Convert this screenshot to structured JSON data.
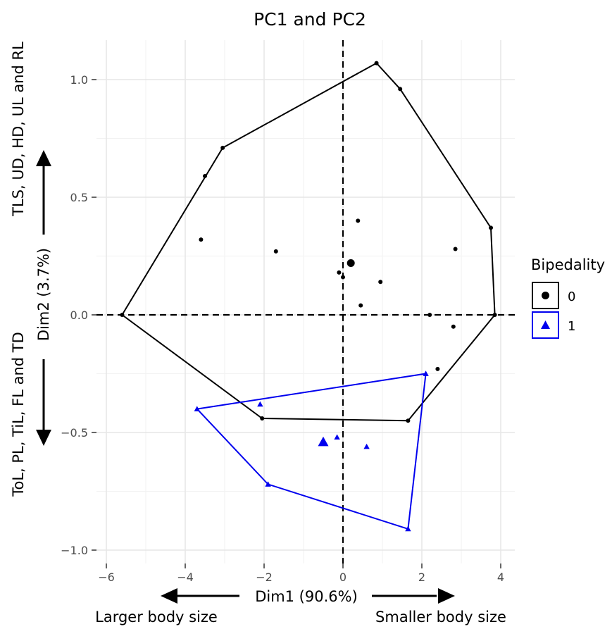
{
  "chart_data": {
    "type": "scatter",
    "title": "PC1 and PC2",
    "xlabel": "Dim1 (90.6%)",
    "ylabel": "Dim2 (3.7%)",
    "x_arrow_left_label": "Larger body size",
    "x_arrow_right_label": "Smaller body size",
    "y_arrow_up_label": "TLS, UD, HD, UL and RL",
    "y_arrow_down_label": "ToL, PL, TiL, FL and TD",
    "xlim": [
      -6.2,
      4.4
    ],
    "ylim": [
      -1.02,
      1.18
    ],
    "x_ticks": [
      {
        "value": -6,
        "label": "−6"
      },
      {
        "value": -4,
        "label": "−4"
      },
      {
        "value": -2,
        "label": "−2"
      },
      {
        "value": 0,
        "label": "0"
      },
      {
        "value": 2,
        "label": "2"
      },
      {
        "value": 4,
        "label": "4"
      }
    ],
    "y_ticks": [
      {
        "value": -1.0,
        "label": "−1.0"
      },
      {
        "value": -0.5,
        "label": "−0.5"
      },
      {
        "value": 0.0,
        "label": "0.0"
      },
      {
        "value": 0.5,
        "label": "0.5"
      },
      {
        "value": 1.0,
        "label": "1.0"
      }
    ],
    "grid": true,
    "legend": {
      "title": "Bipedality",
      "position": "right",
      "entries": [
        {
          "label": "0",
          "shape": "circle",
          "color": "#000000"
        },
        {
          "label": "1",
          "shape": "triangle",
          "color": "#0000ee"
        }
      ]
    },
    "series": [
      {
        "name": "0",
        "shape": "circle",
        "color": "#000000",
        "points": [
          {
            "x": -5.6,
            "y": 0.0
          },
          {
            "x": -3.05,
            "y": 0.71
          },
          {
            "x": -3.5,
            "y": 0.59
          },
          {
            "x": -3.6,
            "y": 0.32
          },
          {
            "x": -1.7,
            "y": 0.27
          },
          {
            "x": 0.85,
            "y": 1.07
          },
          {
            "x": 1.45,
            "y": 0.96
          },
          {
            "x": 0.38,
            "y": 0.4
          },
          {
            "x": 0.2,
            "y": 0.22,
            "size": "large"
          },
          {
            "x": -0.1,
            "y": 0.18
          },
          {
            "x": 0.0,
            "y": 0.16
          },
          {
            "x": 0.95,
            "y": 0.14
          },
          {
            "x": 0.45,
            "y": 0.04
          },
          {
            "x": 2.85,
            "y": 0.28
          },
          {
            "x": 3.75,
            "y": 0.37
          },
          {
            "x": 3.85,
            "y": 0.0
          },
          {
            "x": 2.2,
            "y": 0.0
          },
          {
            "x": 2.8,
            "y": -0.05
          },
          {
            "x": 2.4,
            "y": -0.23
          },
          {
            "x": 1.65,
            "y": -0.45
          },
          {
            "x": -2.05,
            "y": -0.44
          }
        ],
        "hull": [
          {
            "x": -5.6,
            "y": 0.0
          },
          {
            "x": -3.05,
            "y": 0.71
          },
          {
            "x": 0.85,
            "y": 1.07
          },
          {
            "x": 1.45,
            "y": 0.96
          },
          {
            "x": 3.75,
            "y": 0.37
          },
          {
            "x": 3.85,
            "y": 0.0
          },
          {
            "x": 1.65,
            "y": -0.45
          },
          {
            "x": -2.05,
            "y": -0.44
          }
        ]
      },
      {
        "name": "1",
        "shape": "triangle",
        "color": "#0000ee",
        "points": [
          {
            "x": -3.7,
            "y": -0.4
          },
          {
            "x": -2.1,
            "y": -0.38
          },
          {
            "x": 2.1,
            "y": -0.25
          },
          {
            "x": -0.5,
            "y": -0.54,
            "size": "large"
          },
          {
            "x": -0.15,
            "y": -0.52
          },
          {
            "x": 0.6,
            "y": -0.56
          },
          {
            "x": -1.9,
            "y": -0.72
          },
          {
            "x": 1.65,
            "y": -0.91
          }
        ],
        "hull": [
          {
            "x": -3.7,
            "y": -0.4
          },
          {
            "x": 2.1,
            "y": -0.25
          },
          {
            "x": 1.65,
            "y": -0.91
          },
          {
            "x": -1.9,
            "y": -0.72
          }
        ]
      }
    ]
  }
}
